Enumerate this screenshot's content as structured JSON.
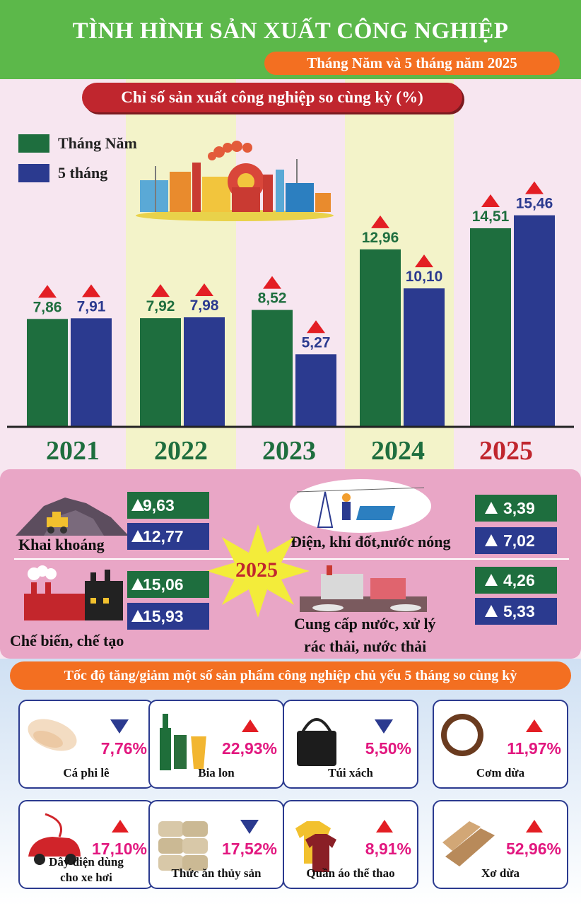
{
  "header": {
    "title": "TÌNH HÌNH SẢN XUẤT CÔNG NGHIỆP",
    "subtitle": "Tháng Năm và 5 tháng  năm 2025"
  },
  "chart_title": "Chỉ số sản xuất công nghiệp so cùng kỳ (%)",
  "legend": {
    "month": "Tháng Năm",
    "five": "5 tháng"
  },
  "colors": {
    "green": "#1e6e3e",
    "blue": "#2b3a8f",
    "red": "#e31e24",
    "accent": "#f36f21"
  },
  "chart_data": {
    "type": "bar",
    "categories": [
      "2021",
      "2022",
      "2023",
      "2024",
      "2025"
    ],
    "series": [
      {
        "name": "Tháng Năm",
        "values": [
          7.86,
          7.92,
          8.52,
          12.96,
          14.51
        ],
        "labels": [
          "7,86",
          "7,92",
          "8,52",
          "12,96",
          "14,51"
        ]
      },
      {
        "name": "5 tháng",
        "values": [
          7.91,
          7.98,
          5.27,
          10.1,
          15.46
        ],
        "labels": [
          "7,91",
          "7,98",
          "5,27",
          "10,10",
          "15,46"
        ]
      }
    ],
    "ylim": [
      0,
      17.5
    ],
    "trend": "all-up"
  },
  "sectors": {
    "year_badge": "2025",
    "mining": {
      "label": "Khai khoáng",
      "month": "9,63",
      "five": "12,77"
    },
    "electricity": {
      "label": "Điện, khí đốt,nước nóng",
      "month": "3,39",
      "five": "7,02"
    },
    "manufacturing": {
      "label": "Chế biến, chế tạo",
      "month": "15,06",
      "five": "15,93"
    },
    "water": {
      "label_1": "Cung cấp nước, xử lý",
      "label_2": "rác thải, nước thải",
      "month": "4,26",
      "five": "5,33"
    }
  },
  "products_title": "Tốc độ tăng/giảm một số sản phẩm công nghiệp chủ yếu 5 tháng so cùng kỳ",
  "products": [
    {
      "name": "Cá phi lê",
      "pct": "7,76%",
      "trend": "down",
      "icon": "fish-fillet-icon"
    },
    {
      "name": "Bia lon",
      "pct": "22,93%",
      "trend": "up",
      "icon": "beer-icon"
    },
    {
      "name": "Túi xách",
      "pct": "5,50%",
      "trend": "down",
      "icon": "handbag-icon"
    },
    {
      "name": "Cơm dừa",
      "pct": "11,97%",
      "trend": "up",
      "icon": "coconut-icon"
    },
    {
      "name": "Dây điện dùng",
      "name_2": "cho xe hơi",
      "pct": "17,10%",
      "trend": "up",
      "icon": "car-wire-icon"
    },
    {
      "name": "Thức ăn thủy sản",
      "pct": "17,52%",
      "trend": "down",
      "icon": "feed-sacks-icon"
    },
    {
      "name": "Quần áo thể thao",
      "pct": "8,91%",
      "trend": "up",
      "icon": "sportswear-icon"
    },
    {
      "name": "Xơ dừa",
      "pct": "52,96%",
      "trend": "up",
      "icon": "coir-icon"
    }
  ]
}
